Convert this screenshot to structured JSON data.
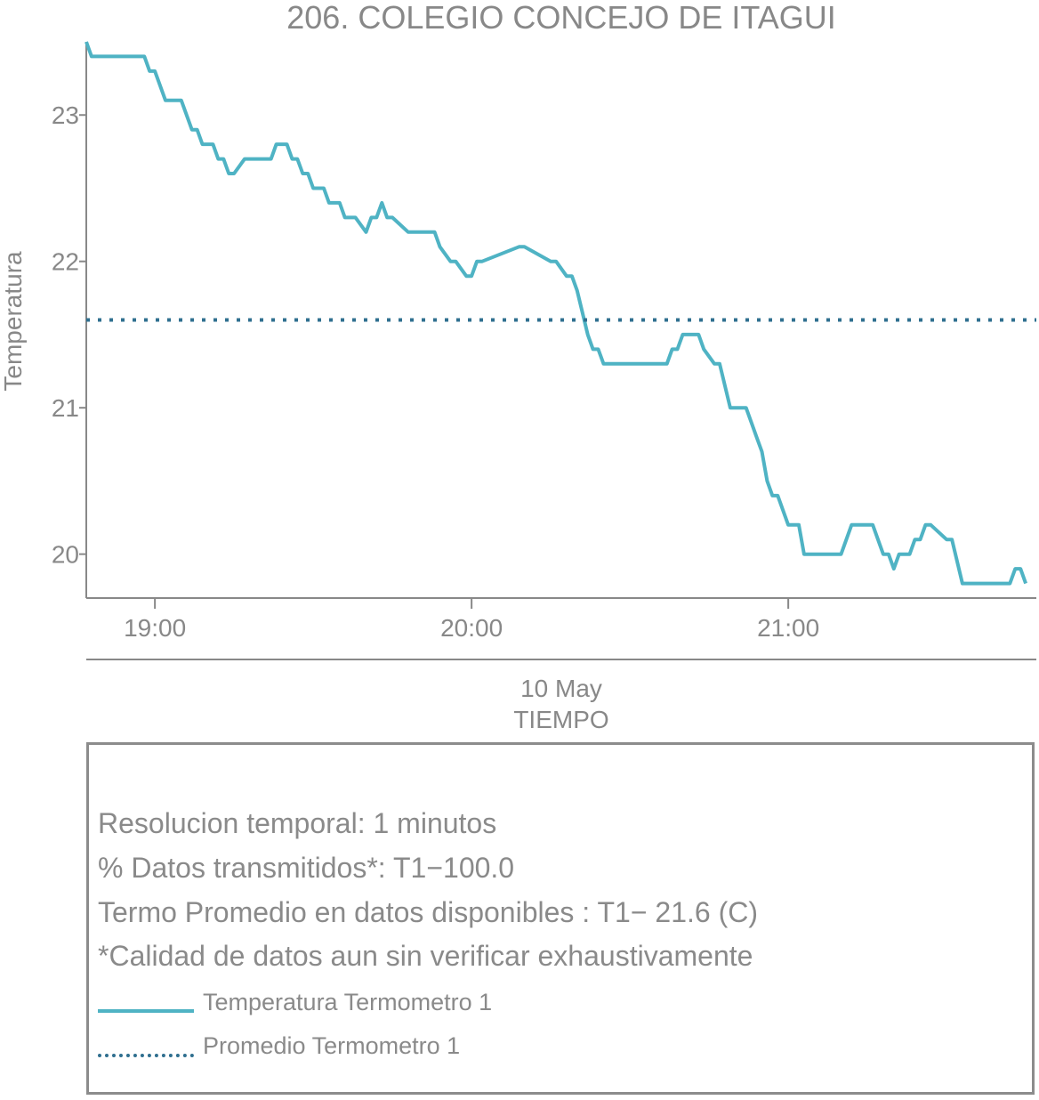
{
  "colors": {
    "series_line": "#4fb3c4",
    "mean_line": "#2f6f8f",
    "axis": "#888888",
    "text": "#888888"
  },
  "chart_data": {
    "type": "line",
    "title": "206. COLEGIO CONCEJO DE ITAGUI",
    "ylabel": "Temperatura",
    "xlabel_date": "10 May",
    "xlabel": "TIEMPO",
    "x_range": [
      "18:47",
      "21:47"
    ],
    "ylim": [
      19.7,
      23.5
    ],
    "x_ticks": [
      "19:00",
      "20:00",
      "21:00"
    ],
    "y_ticks": [
      20,
      21,
      22,
      23
    ],
    "grid": false,
    "series": [
      {
        "name": "Temperatura Termometro 1",
        "style": "solid",
        "x": [
          "18:47",
          "18:48",
          "18:58",
          "18:59",
          "19:00",
          "19:02",
          "19:05",
          "19:07",
          "19:08",
          "19:09",
          "19:11",
          "19:12",
          "19:13",
          "19:14",
          "19:15",
          "19:17",
          "19:18",
          "19:22",
          "19:23",
          "19:25",
          "19:26",
          "19:27",
          "19:28",
          "19:29",
          "19:30",
          "19:32",
          "19:33",
          "19:35",
          "19:36",
          "19:38",
          "19:40",
          "19:41",
          "19:42",
          "19:43",
          "19:44",
          "19:45",
          "19:48",
          "19:53",
          "19:54",
          "19:56",
          "19:57",
          "19:59",
          "20:00",
          "20:01",
          "20:02",
          "20:09",
          "20:10",
          "20:15",
          "20:16",
          "20:18",
          "20:19",
          "20:20",
          "20:22",
          "20:23",
          "20:24",
          "20:25",
          "20:37",
          "20:38",
          "20:39",
          "20:40",
          "20:43",
          "20:44",
          "20:46",
          "20:47",
          "20:49",
          "20:52",
          "20:53",
          "20:54",
          "20:55",
          "20:56",
          "20:57",
          "20:58",
          "21:00",
          "21:02",
          "21:03",
          "21:05",
          "21:10",
          "21:12",
          "21:16",
          "21:18",
          "21:19",
          "21:20",
          "21:21",
          "21:23",
          "21:24",
          "21:25",
          "21:26",
          "21:27",
          "21:30",
          "21:31",
          "21:33",
          "21:42",
          "21:43",
          "21:44",
          "21:45"
        ],
        "y": [
          23.5,
          23.4,
          23.4,
          23.3,
          23.3,
          23.1,
          23.1,
          22.9,
          22.9,
          22.8,
          22.8,
          22.7,
          22.7,
          22.6,
          22.6,
          22.7,
          22.7,
          22.7,
          22.8,
          22.8,
          22.7,
          22.7,
          22.6,
          22.6,
          22.5,
          22.5,
          22.4,
          22.4,
          22.3,
          22.3,
          22.2,
          22.3,
          22.3,
          22.4,
          22.3,
          22.3,
          22.2,
          22.2,
          22.1,
          22.0,
          22.0,
          21.9,
          21.9,
          22.0,
          22.0,
          22.1,
          22.1,
          22.0,
          22.0,
          21.9,
          21.9,
          21.8,
          21.5,
          21.4,
          21.4,
          21.3,
          21.3,
          21.4,
          21.4,
          21.5,
          21.5,
          21.4,
          21.3,
          21.3,
          21.0,
          21.0,
          20.9,
          20.8,
          20.7,
          20.5,
          20.4,
          20.4,
          20.2,
          20.2,
          20.0,
          20.0,
          20.0,
          20.2,
          20.2,
          20.0,
          20.0,
          19.9,
          20.0,
          20.0,
          20.1,
          20.1,
          20.2,
          20.2,
          20.1,
          20.1,
          19.8,
          19.8,
          19.9,
          19.9,
          19.8
        ]
      },
      {
        "name": "Promedio Termometro 1",
        "style": "dotted",
        "x": [
          "18:47",
          "21:47"
        ],
        "y": [
          21.6,
          21.6
        ]
      }
    ]
  },
  "info": {
    "line1": "Resolucion temporal: 1 minutos",
    "line2": "% Datos transmitidos*: T1−100.0",
    "line3": "Termo Promedio en datos disponibles : T1− 21.6 (C)",
    "line4": "*Calidad de datos aun sin verificar exhaustivamente"
  },
  "legend": {
    "solid_label": "Temperatura Termometro 1",
    "dotted_label": "Promedio Termometro 1"
  }
}
